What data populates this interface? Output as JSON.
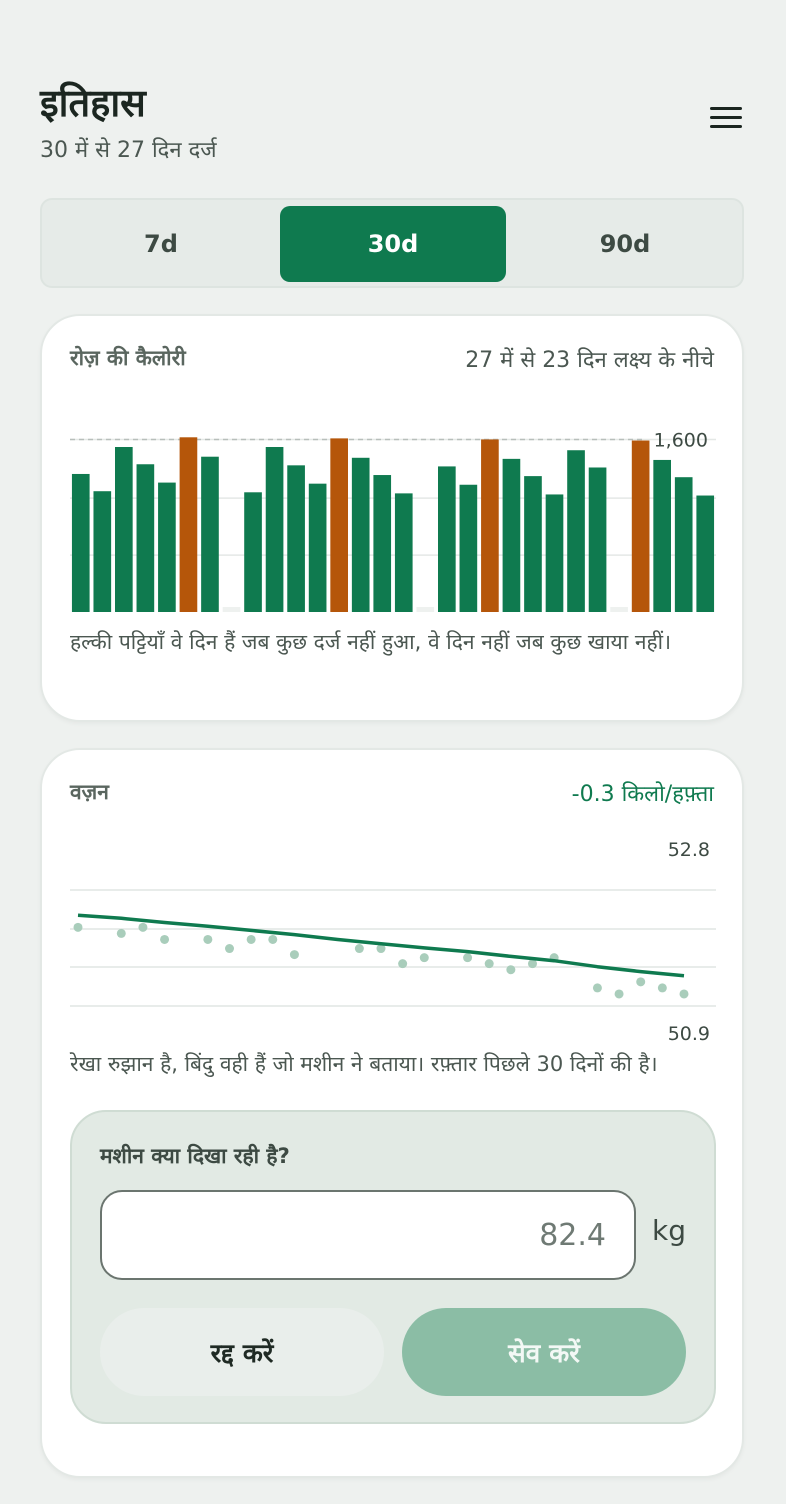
{
  "header": {
    "title": "इतिहास",
    "subtitle": "30 में से 27 दिन दर्ज"
  },
  "range_tabs": [
    {
      "label": "7d",
      "active": false
    },
    {
      "label": "30d",
      "active": true
    },
    {
      "label": "90d",
      "active": false
    }
  ],
  "calorie_card": {
    "label": "रोज़ की कैलोरी",
    "meta": "27 में से 23 दिन लक्ष्य के नीचे",
    "note": "हल्की पट्टियाँ वे दिन हैं जब कुछ दर्ज नहीं हुआ, वे दिन नहीं जब कुछ खाया नहीं।"
  },
  "weight_card": {
    "label": "वज़न",
    "rate": "-0.3 किलो/हफ़्ता",
    "note": "रेखा रुझान है, बिंदु वही हैं जो मशीन ने बताया। रफ़्तार पिछले 30 दिनों की है।",
    "entry": {
      "label": "मशीन क्या दिखा रही है?",
      "placeholder": "82.4",
      "value": "",
      "unit": "kg",
      "cancel_label": "रद्द करें",
      "save_label": "सेव करें"
    }
  },
  "colors": {
    "accent": "#0f7a4f",
    "over_goal": "#b5560a",
    "missing": "#eef1ef",
    "trend_dot": "#a9cdbb"
  },
  "chart_data": [
    {
      "type": "bar",
      "goal": 1600,
      "ylim": [
        0,
        1600
      ],
      "goal_label": "1,600",
      "values": [
        1280,
        1120,
        1530,
        1370,
        1200,
        1620,
        1440,
        0,
        1110,
        1530,
        1360,
        1190,
        1610,
        1430,
        1270,
        1100,
        0,
        1350,
        1180,
        1600,
        1420,
        1260,
        1090,
        1500,
        1340,
        0,
        1590,
        1410,
        1250,
        1080
      ],
      "status": [
        "under",
        "under",
        "under",
        "under",
        "under",
        "over",
        "under",
        "missing",
        "under",
        "under",
        "under",
        "under",
        "over",
        "under",
        "under",
        "under",
        "missing",
        "under",
        "under",
        "over",
        "under",
        "under",
        "under",
        "under",
        "under",
        "missing",
        "over",
        "under",
        "under",
        "under"
      ]
    },
    {
      "type": "scatter+line",
      "ylim": [
        50.9,
        52.8
      ],
      "y_max_label": "52.8",
      "y_min_label": "50.9",
      "points": [
        {
          "x": 1,
          "y": 52.1
        },
        {
          "x": 3,
          "y": 52.0
        },
        {
          "x": 4,
          "y": 52.1
        },
        {
          "x": 5,
          "y": 51.9
        },
        {
          "x": 7,
          "y": 51.9
        },
        {
          "x": 8,
          "y": 51.75
        },
        {
          "x": 9,
          "y": 51.9
        },
        {
          "x": 10,
          "y": 51.9
        },
        {
          "x": 11,
          "y": 51.65
        },
        {
          "x": 14,
          "y": 51.75
        },
        {
          "x": 15,
          "y": 51.75
        },
        {
          "x": 16,
          "y": 51.5
        },
        {
          "x": 17,
          "y": 51.6
        },
        {
          "x": 19,
          "y": 51.6
        },
        {
          "x": 20,
          "y": 51.5
        },
        {
          "x": 21,
          "y": 51.4
        },
        {
          "x": 22,
          "y": 51.5
        },
        {
          "x": 23,
          "y": 51.6
        },
        {
          "x": 25,
          "y": 51.1
        },
        {
          "x": 26,
          "y": 51.0
        },
        {
          "x": 27,
          "y": 51.2
        },
        {
          "x": 28,
          "y": 51.1
        },
        {
          "x": 29,
          "y": 51.0
        }
      ],
      "trend": [
        {
          "x": 1,
          "y": 52.3
        },
        {
          "x": 3,
          "y": 52.25
        },
        {
          "x": 5,
          "y": 52.18
        },
        {
          "x": 7,
          "y": 52.12
        },
        {
          "x": 9,
          "y": 52.05
        },
        {
          "x": 11,
          "y": 51.98
        },
        {
          "x": 13,
          "y": 51.9
        },
        {
          "x": 15,
          "y": 51.83
        },
        {
          "x": 17,
          "y": 51.76
        },
        {
          "x": 19,
          "y": 51.7
        },
        {
          "x": 21,
          "y": 51.62
        },
        {
          "x": 23,
          "y": 51.55
        },
        {
          "x": 25,
          "y": 51.45
        },
        {
          "x": 27,
          "y": 51.37
        },
        {
          "x": 29,
          "y": 51.3
        }
      ]
    }
  ]
}
